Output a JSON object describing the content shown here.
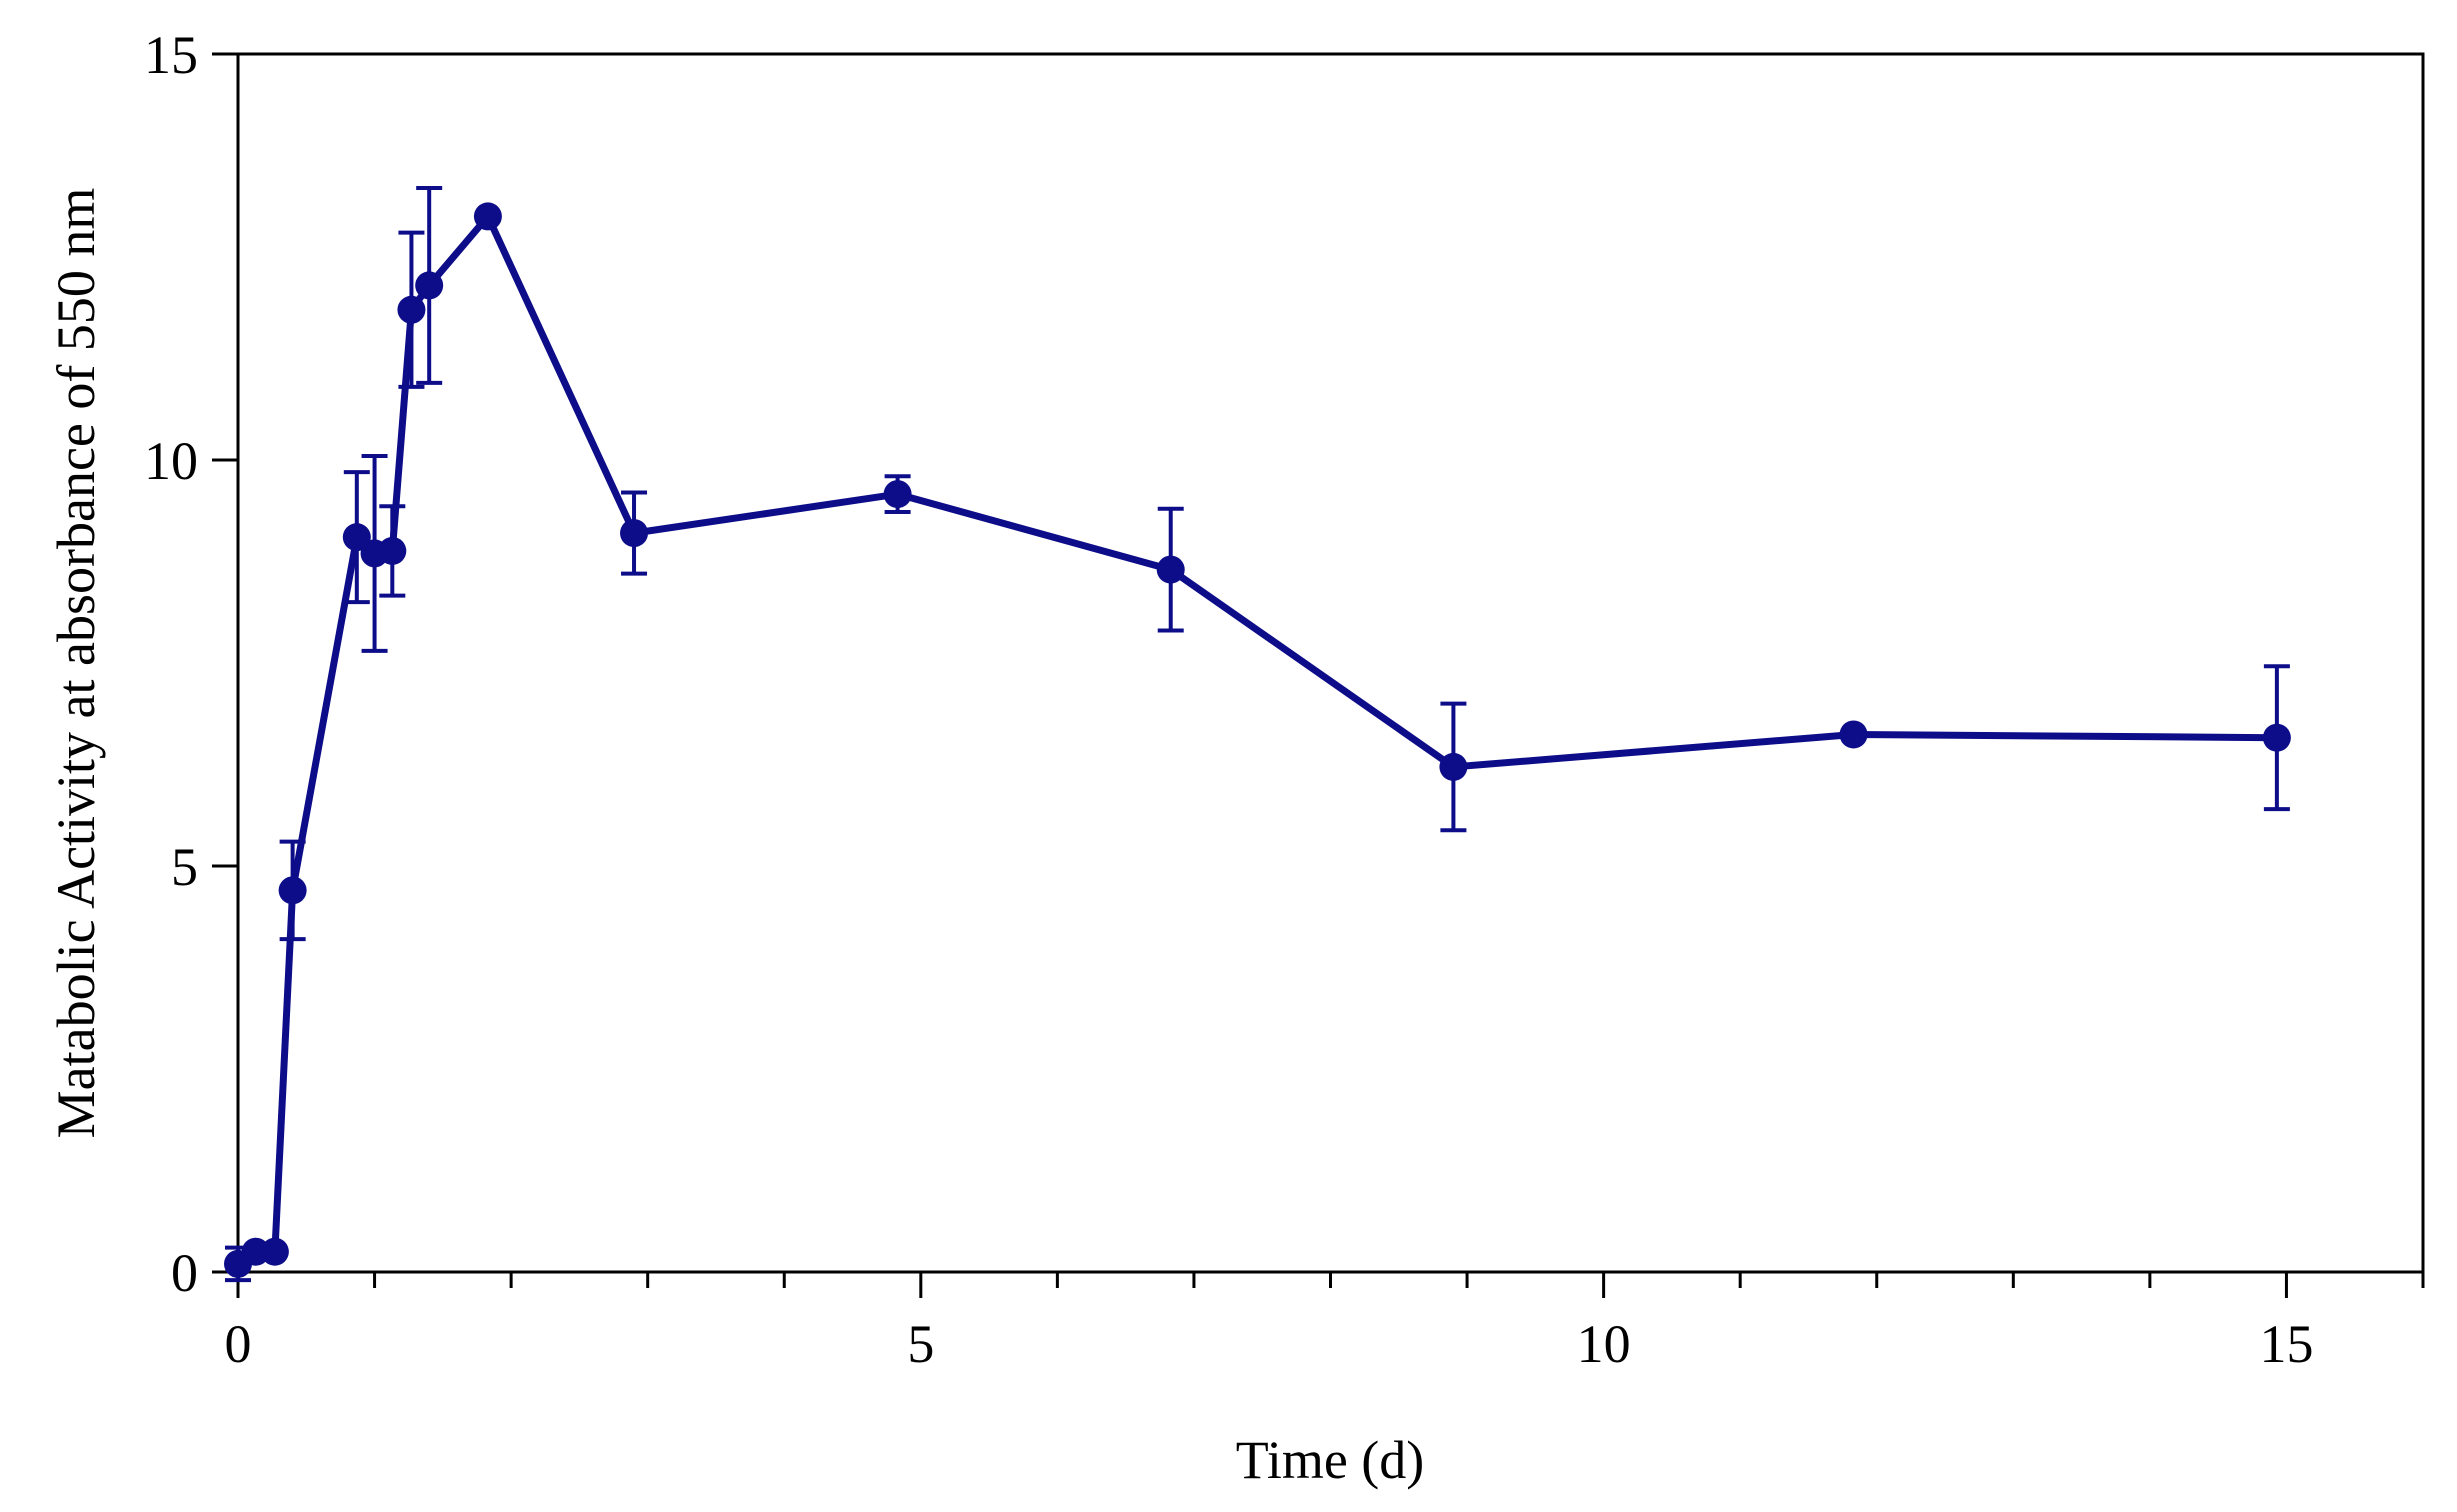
{
  "chart_data": {
    "type": "line",
    "title": "",
    "xlabel": "Time (d)",
    "ylabel": "Matabolic Activity at absorbance of 550 nm",
    "xlim": [
      0,
      16
    ],
    "ylim": [
      0,
      15
    ],
    "x_ticks": [
      0,
      5,
      10,
      15
    ],
    "x_minor_ticks": [
      1,
      2,
      3,
      4,
      6,
      7,
      8,
      9,
      11,
      12,
      13,
      14,
      16
    ],
    "y_ticks": [
      0,
      5,
      10,
      15
    ],
    "x_tick_labels": [
      "0",
      "5",
      "10",
      "15"
    ],
    "y_tick_labels": [
      "0",
      "5",
      "10",
      "15"
    ],
    "grid": false,
    "color": "#0d0d8a",
    "series": [
      {
        "name": "Metabolic activity",
        "x": [
          0.0,
          0.13,
          0.27,
          0.4,
          0.87,
          1.0,
          1.13,
          1.27,
          1.4,
          1.83,
          2.9,
          4.83,
          6.83,
          8.9,
          11.83,
          14.93
        ],
        "y": [
          0.1,
          0.25,
          0.25,
          4.7,
          9.05,
          8.85,
          8.88,
          11.85,
          12.15,
          13.0,
          9.1,
          9.58,
          8.65,
          6.22,
          6.62,
          6.58
        ],
        "error": [
          0.2,
          0.0,
          0.0,
          0.6,
          0.8,
          1.2,
          0.55,
          0.95,
          1.2,
          0.0,
          0.5,
          0.22,
          0.75,
          0.78,
          0.0,
          0.88
        ]
      }
    ]
  }
}
